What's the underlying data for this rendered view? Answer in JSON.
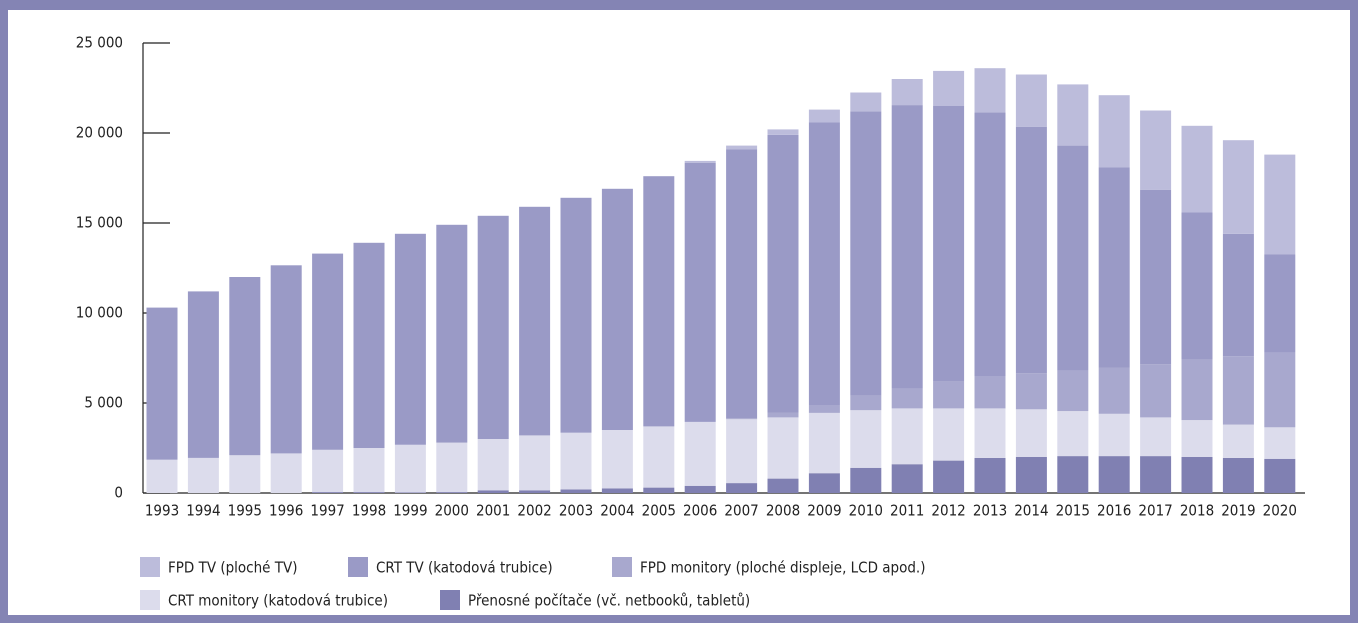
{
  "chart_data": {
    "type": "stacked_bar",
    "categories": [
      "1993",
      "1994",
      "1995",
      "1996",
      "1997",
      "1998",
      "1999",
      "2000",
      "2001",
      "2002",
      "2003",
      "2004",
      "2005",
      "2006",
      "2007",
      "2008",
      "2009",
      "2010",
      "2011",
      "2012",
      "2013",
      "2014",
      "2015",
      "2016",
      "2017",
      "2018",
      "2019",
      "2020"
    ],
    "series": [
      {
        "name": "FPD TV (ploché TV)",
        "color": "#bcbcdb",
        "values": [
          0,
          0,
          0,
          0,
          0,
          0,
          0,
          0,
          0,
          0,
          0,
          0,
          0,
          100,
          200,
          300,
          700,
          1050,
          1450,
          1950,
          2450,
          2900,
          3400,
          4000,
          4400,
          4800,
          5200,
          5550
        ]
      },
      {
        "name": "CRT TV (katodová trubice)",
        "color": "#9a9ac6",
        "values": [
          8450,
          9250,
          9900,
          10450,
          10900,
          11400,
          11720,
          12100,
          12400,
          12700,
          13050,
          13400,
          13900,
          14400,
          14950,
          15450,
          15750,
          15800,
          15750,
          15300,
          14650,
          13700,
          12500,
          11150,
          9700,
          8200,
          6800,
          5450
        ]
      },
      {
        "name": "FPD monitory (ploché displeje, LCD apod.)",
        "color": "#a8a8ce",
        "values": [
          0,
          0,
          0,
          0,
          0,
          0,
          0,
          0,
          0,
          0,
          0,
          0,
          0,
          0,
          50,
          250,
          400,
          800,
          1100,
          1500,
          1800,
          2000,
          2250,
          2550,
          2950,
          3350,
          3800,
          4150
        ]
      },
      {
        "name": "CRT monitory (katodová trubice)",
        "color": "#dcdcec",
        "values": [
          1850,
          1950,
          2100,
          2200,
          2350,
          2450,
          2650,
          2750,
          2850,
          3050,
          3150,
          3250,
          3400,
          3550,
          3550,
          3400,
          3350,
          3200,
          3100,
          2900,
          2750,
          2650,
          2500,
          2350,
          2150,
          2050,
          1850,
          1750
        ]
      },
      {
        "name": "Přenosné počítače (vč. netbooků, tabletů)",
        "color": "#8080b2",
        "values": [
          0,
          0,
          0,
          0,
          50,
          50,
          30,
          50,
          150,
          150,
          200,
          250,
          300,
          400,
          550,
          800,
          1100,
          1400,
          1600,
          1800,
          1950,
          2000,
          2050,
          2050,
          2050,
          2000,
          1950,
          1900
        ]
      }
    ],
    "ylim": [
      0,
      25000
    ],
    "yticks": [
      {
        "value": 0,
        "label": "0"
      },
      {
        "value": 5000,
        "label": "5 000"
      },
      {
        "value": 10000,
        "label": "10 000"
      },
      {
        "value": 15000,
        "label": "15 000"
      },
      {
        "value": 20000,
        "label": "20 000"
      },
      {
        "value": 25000,
        "label": "25 000"
      }
    ],
    "grid": false
  }
}
